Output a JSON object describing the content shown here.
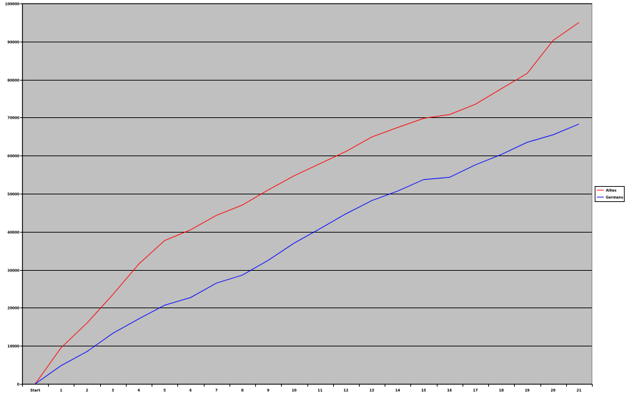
{
  "chart_data": {
    "type": "line",
    "title": "",
    "xlabel": "",
    "ylabel": "",
    "categories": [
      "Start",
      "1",
      "2",
      "3",
      "4",
      "5",
      "6",
      "7",
      "8",
      "9",
      "10",
      "11",
      "12",
      "13",
      "14",
      "15",
      "16",
      "17",
      "18",
      "19",
      "20",
      "21"
    ],
    "ylim": [
      0,
      100000
    ],
    "yticks": [
      0,
      10000,
      20000,
      30000,
      40000,
      50000,
      60000,
      70000,
      80000,
      90000,
      100000
    ],
    "ytick_labels": [
      "0",
      "10000",
      "20000",
      "30000",
      "40000",
      "50000",
      "60000",
      "70000",
      "80000",
      "90000",
      "100000"
    ],
    "grid": true,
    "legend_position": "right",
    "plot_background": "#c0c0c0",
    "series": [
      {
        "name": "Allies",
        "color": "#ff0000",
        "values": [
          0,
          9500,
          16000,
          23500,
          31500,
          37700,
          40500,
          44300,
          47000,
          51000,
          54700,
          57900,
          61100,
          64900,
          67400,
          69800,
          70800,
          73500,
          77600,
          81600,
          90300,
          95000
        ]
      },
      {
        "name": "Germans",
        "color": "#0000ff",
        "values": [
          0,
          4800,
          8500,
          13300,
          17100,
          20700,
          22700,
          26500,
          28600,
          32500,
          37000,
          40800,
          44700,
          48200,
          50700,
          53700,
          54300,
          57600,
          60300,
          63500,
          65500,
          68300
        ]
      }
    ]
  }
}
